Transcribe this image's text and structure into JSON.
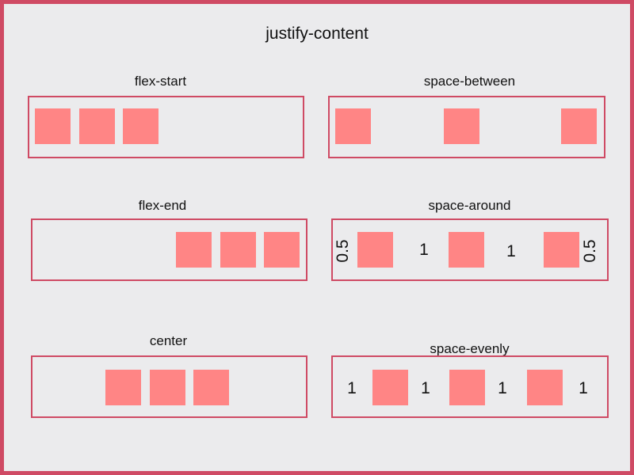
{
  "title": "justify-content",
  "panels": {
    "flex_start": {
      "label": "flex-start"
    },
    "space_between": {
      "label": "space-between"
    },
    "flex_end": {
      "label": "flex-end"
    },
    "space_around": {
      "label": "space-around",
      "gaps": [
        "0.5",
        "1",
        "1",
        "0.5"
      ]
    },
    "center": {
      "label": "center"
    },
    "space_evenly": {
      "label": "space-evenly",
      "gaps": [
        "1",
        "1",
        "1",
        "1"
      ]
    }
  },
  "colors": {
    "border": "#cf4a64",
    "background": "#ebebed",
    "item": "#ff8585"
  }
}
